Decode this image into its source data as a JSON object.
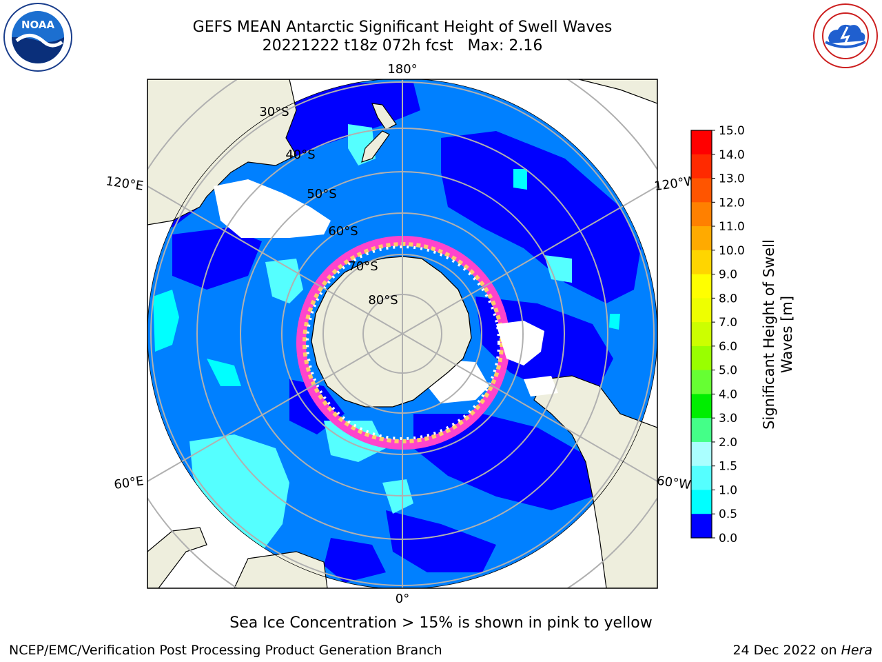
{
  "header": {
    "title": "GEFS MEAN Antarctic Significant Height of Swell Waves",
    "subtitle": "20221222 t18z 072h fcst   Max: 2.16"
  },
  "logos": {
    "left": "noaa-logo",
    "right": "national-weather-service-logo",
    "left_text": "NOAA",
    "right_text": "NATIONAL WEATHER SERVICE"
  },
  "map": {
    "projection": "south-polar-stereographic",
    "longitude_labels": [
      "180°",
      "120°E",
      "120°W",
      "60°E",
      "60°W",
      "0°"
    ],
    "latitude_labels": [
      "30°S",
      "40°S",
      "50°S",
      "60°S",
      "70°S",
      "80°S"
    ],
    "land_color": "#eeeedd",
    "ice_edge_color": "#ff44cc"
  },
  "colorbar": {
    "label": "Significant Height of Swell Waves [m]",
    "label_line1": "Significant Height of Swell",
    "label_line2": "Waves [m]",
    "ticks": [
      "15.0",
      "14.0",
      "13.0",
      "12.0",
      "11.0",
      "10.0",
      "9.0",
      "8.0",
      "7.0",
      "6.0",
      "5.0",
      "4.0",
      "3.0",
      "2.0",
      "1.5",
      "1.0",
      "0.5",
      "0.0"
    ],
    "colors": [
      "#ff0000",
      "#ff2a00",
      "#ff5500",
      "#ff8000",
      "#ffaa00",
      "#ffd500",
      "#ffff00",
      "#eeff00",
      "#ccff00",
      "#99ff00",
      "#66ff33",
      "#00ee00",
      "#44ff88",
      "#aaffff",
      "#55ffff",
      "#00ffff",
      "#0080ff",
      "#0000ff"
    ]
  },
  "chart_data": {
    "type": "heatmap",
    "title": "GEFS MEAN Antarctic Significant Height of Swell Waves",
    "variable": "Significant Height of Swell Waves [m]",
    "max": 2.16,
    "color_levels": [
      0.0,
      0.5,
      1.0,
      1.5,
      2.0,
      3.0,
      4.0,
      5.0,
      6.0,
      7.0,
      8.0,
      9.0,
      10.0,
      11.0,
      12.0,
      13.0,
      14.0,
      15.0
    ]
  },
  "footer": {
    "caption": "Sea Ice Concentration > 15% is shown in pink to yellow",
    "credit": "NCEP/EMC/Verification Post Processing Product Generation Branch",
    "date": "24 Dec 2022 on ",
    "host": "Hera"
  }
}
